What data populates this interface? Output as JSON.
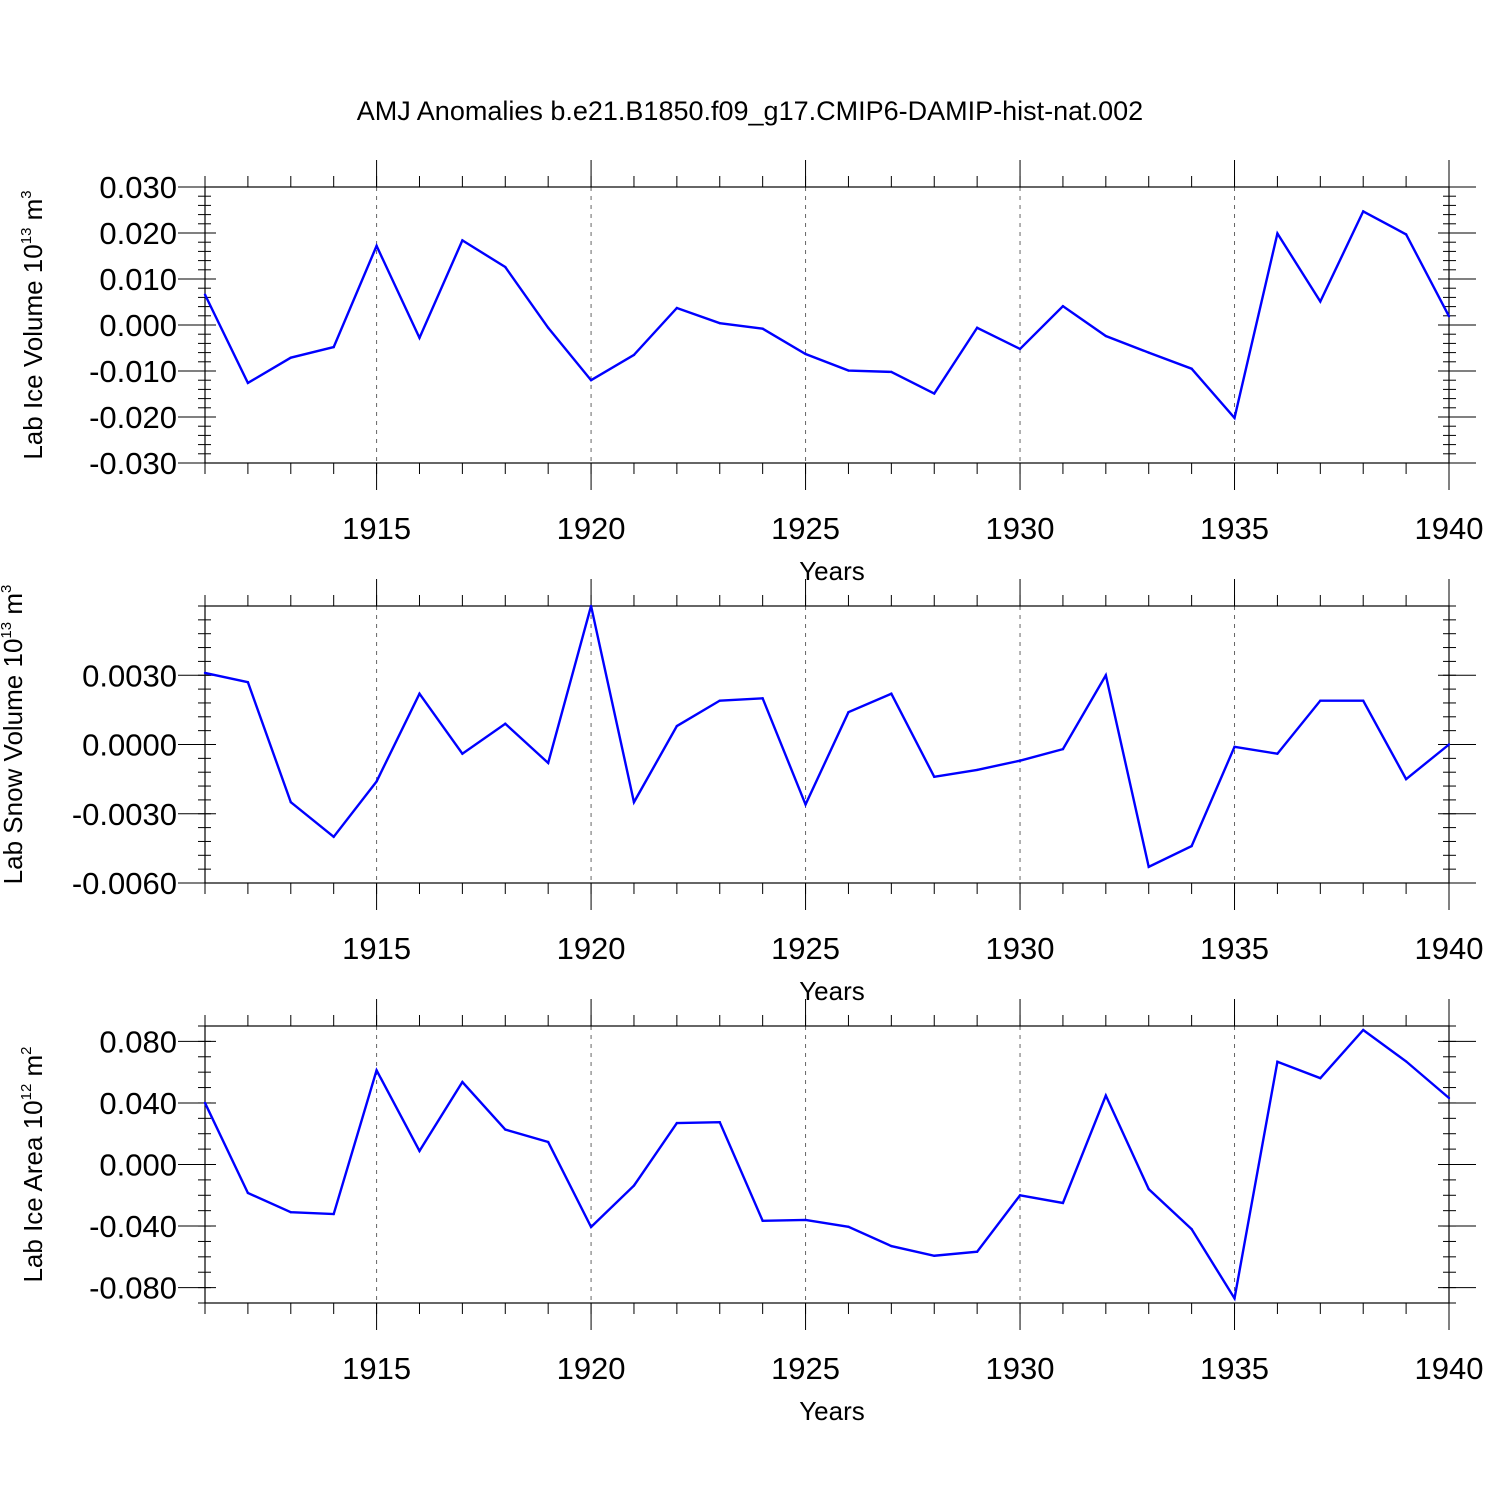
{
  "title": "AMJ Anomalies b.e21.B1850.f09_g17.CMIP6-DAMIP-hist-nat.002",
  "colors": {
    "line": "#0000ff",
    "axis": "#000000",
    "grid": "#666666"
  },
  "chart_data": [
    {
      "type": "line",
      "title": "AMJ Anomalies b.e21.B1850.f09_g17.CMIP6-DAMIP-hist-nat.002",
      "xlabel": "Years",
      "ylabel_main": "Lab Ice Volume 10",
      "ylabel_exp": "13",
      "ylabel_unit": "m",
      "ylabel_unit_exp": "3",
      "xlim": [
        1911,
        1940
      ],
      "ylim": [
        -0.03,
        0.03
      ],
      "x_ticks": [
        1915,
        1920,
        1925,
        1930,
        1935,
        1940
      ],
      "x_tick_labels": [
        "1915",
        "1920",
        "1925",
        "1930",
        "1935",
        "1940"
      ],
      "y_ticks": [
        -0.03,
        -0.02,
        -0.01,
        0.0,
        0.01,
        0.02,
        0.03
      ],
      "y_tick_labels": [
        "-0.030",
        "-0.020",
        "-0.010",
        "0.000",
        "0.010",
        "0.020",
        "0.030"
      ],
      "y_minor_step": 0.002,
      "grid": "vertical dashed at major x ticks",
      "x": [
        1911,
        1912,
        1913,
        1914,
        1915,
        1916,
        1917,
        1918,
        1919,
        1920,
        1921,
        1922,
        1923,
        1924,
        1925,
        1926,
        1927,
        1928,
        1929,
        1930,
        1931,
        1932,
        1933,
        1934,
        1935,
        1936,
        1937,
        1938,
        1939,
        1940
      ],
      "values": [
        0.0066,
        -0.0126,
        -0.0071,
        -0.0048,
        0.0172,
        -0.0028,
        0.0184,
        0.0126,
        -0.0006,
        -0.012,
        -0.0065,
        0.0037,
        0.0004,
        -0.0008,
        -0.0063,
        -0.0099,
        -0.0102,
        -0.0149,
        -0.0006,
        -0.0052,
        0.0041,
        -0.0024,
        -0.006,
        -0.0095,
        -0.0202,
        0.0199,
        0.0051,
        0.0247,
        0.0197,
        0.0019
      ]
    },
    {
      "type": "line",
      "xlabel": "Years",
      "ylabel_main": "Lab Snow Volume 10",
      "ylabel_exp": "13",
      "ylabel_unit": "m",
      "ylabel_unit_exp": "3",
      "xlim": [
        1911,
        1940
      ],
      "ylim": [
        -0.006,
        0.006
      ],
      "x_ticks": [
        1915,
        1920,
        1925,
        1930,
        1935,
        1940
      ],
      "x_tick_labels": [
        "1915",
        "1920",
        "1925",
        "1930",
        "1935",
        "1940"
      ],
      "y_ticks": [
        -0.006,
        -0.003,
        0.0,
        0.003
      ],
      "y_tick_labels": [
        "-0.0060",
        "-0.0030",
        "0.0000",
        "0.0030"
      ],
      "y_minor_step": 0.0006,
      "grid": "vertical dashed at major x ticks",
      "x": [
        1911,
        1912,
        1913,
        1914,
        1915,
        1916,
        1917,
        1918,
        1919,
        1920,
        1921,
        1922,
        1923,
        1924,
        1925,
        1926,
        1927,
        1928,
        1929,
        1930,
        1931,
        1932,
        1933,
        1934,
        1935,
        1936,
        1937,
        1938,
        1939,
        1940
      ],
      "values": [
        0.0031,
        0.0027,
        -0.0025,
        -0.004,
        -0.0016,
        0.0022,
        -0.0004,
        0.0009,
        -0.0008,
        0.006,
        -0.0025,
        0.0008,
        0.0019,
        0.002,
        -0.0026,
        0.0014,
        0.0022,
        -0.0014,
        -0.0011,
        -0.0007,
        -0.0002,
        0.003,
        -0.0053,
        -0.0044,
        -0.0001,
        -0.0004,
        0.0019,
        0.0019,
        -0.0015,
        0.0
      ]
    },
    {
      "type": "line",
      "xlabel": "Years",
      "ylabel_main": "Lab Ice Area 10",
      "ylabel_exp": "12",
      "ylabel_unit": "m",
      "ylabel_unit_exp": "2",
      "xlim": [
        1911,
        1940
      ],
      "ylim": [
        -0.09,
        0.09
      ],
      "x_ticks": [
        1915,
        1920,
        1925,
        1930,
        1935,
        1940
      ],
      "x_tick_labels": [
        "1915",
        "1920",
        "1925",
        "1930",
        "1935",
        "1940"
      ],
      "y_ticks": [
        -0.08,
        -0.04,
        0.0,
        0.04,
        0.08
      ],
      "y_tick_labels": [
        "-0.080",
        "-0.040",
        "0.000",
        "0.040",
        "0.080"
      ],
      "y_minor_step": 0.01,
      "grid": "vertical dashed at major x ticks",
      "x": [
        1911,
        1912,
        1913,
        1914,
        1915,
        1916,
        1917,
        1918,
        1919,
        1920,
        1921,
        1922,
        1923,
        1924,
        1925,
        1926,
        1927,
        1928,
        1929,
        1930,
        1931,
        1932,
        1933,
        1934,
        1935,
        1936,
        1937,
        1938,
        1939,
        1940
      ],
      "values": [
        0.04,
        -0.0185,
        -0.031,
        -0.0322,
        0.0612,
        0.0088,
        0.0536,
        0.0227,
        0.0146,
        -0.0406,
        -0.0137,
        0.0269,
        0.0275,
        -0.0366,
        -0.036,
        -0.0405,
        -0.053,
        -0.0593,
        -0.0567,
        -0.02,
        -0.025,
        0.0448,
        -0.016,
        -0.042,
        -0.087,
        0.0668,
        0.0561,
        0.0874,
        0.067,
        0.0432
      ]
    }
  ]
}
